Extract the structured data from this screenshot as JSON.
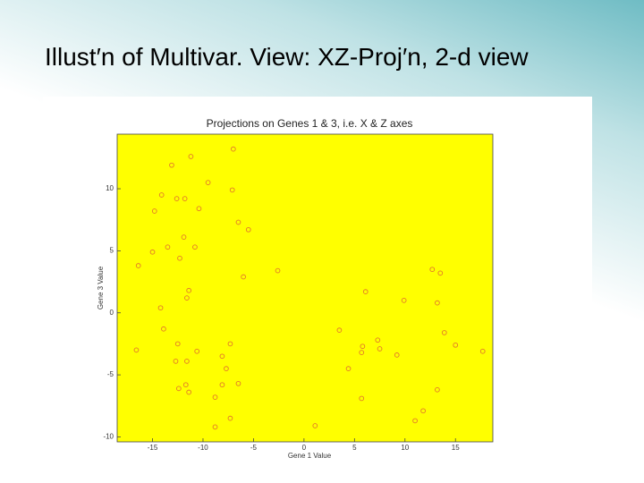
{
  "slide": {
    "title": "Illust′n of Multivar. View: XZ-Proj′n, 2-d view"
  },
  "chart_data": {
    "type": "scatter",
    "title": "Projections on Genes 1 & 3, i.e. X & Z axes",
    "x_label": "Gene 1 Value",
    "y_label": "Gene 3 Value",
    "color": "#e2782a",
    "background": "#ffff00",
    "xlim": [
      -18.5,
      18.7
    ],
    "ylim": [
      -10.4,
      14.4
    ],
    "xticks": [
      -15,
      -10,
      -5,
      0,
      5,
      10,
      15
    ],
    "yticks": [
      -10,
      -5,
      0,
      5,
      10
    ],
    "x": [
      -7.0,
      -11.2,
      -13.1,
      -9.5,
      -7.1,
      -14.1,
      -12.6,
      -11.8,
      -10.4,
      -14.8,
      -6.5,
      -5.5,
      -11.9,
      -13.5,
      -10.8,
      -15.0,
      -12.3,
      -16.4,
      -2.6,
      -6.0,
      12.7,
      13.5,
      -11.4,
      -11.6,
      6.1,
      9.9,
      13.2,
      -14.2,
      -13.9,
      3.5,
      13.9,
      -12.5,
      -7.3,
      7.3,
      5.8,
      15.0,
      -16.6,
      -10.6,
      7.5,
      5.7,
      17.7,
      9.2,
      -8.1,
      -12.7,
      -11.6,
      4.4,
      -7.7,
      -11.7,
      -6.5,
      -8.1,
      -12.4,
      -11.4,
      13.2,
      -8.8,
      5.7,
      11.8,
      -7.3,
      11.0,
      1.1,
      -8.8
    ],
    "y": [
      13.2,
      12.6,
      11.9,
      10.5,
      9.9,
      9.5,
      9.2,
      9.2,
      8.4,
      8.2,
      7.3,
      6.7,
      6.1,
      5.3,
      5.3,
      4.9,
      4.4,
      3.8,
      3.4,
      2.9,
      3.5,
      3.2,
      1.8,
      1.2,
      1.7,
      1.0,
      0.8,
      0.4,
      -1.3,
      -1.4,
      -1.6,
      -2.5,
      -2.5,
      -2.2,
      -2.7,
      -2.6,
      -3.0,
      -3.1,
      -2.9,
      -3.2,
      -3.1,
      -3.4,
      -3.5,
      -3.9,
      -3.9,
      -4.5,
      -4.5,
      -5.8,
      -5.7,
      -5.8,
      -6.1,
      -6.4,
      -6.2,
      -6.8,
      -6.9,
      -7.9,
      -8.5,
      -8.7,
      -9.1,
      -9.2
    ]
  }
}
